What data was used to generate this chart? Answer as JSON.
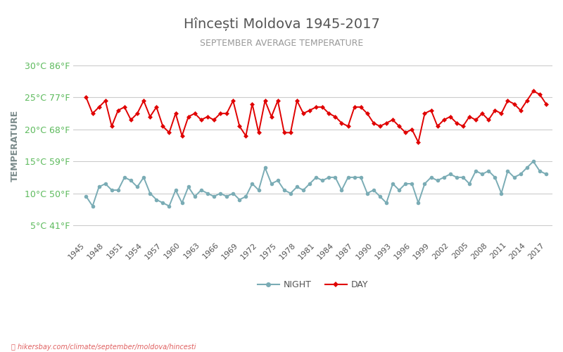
{
  "title": "Hîncești Moldova 1945-2017",
  "subtitle": "SEPTEMBER AVERAGE TEMPERATURE",
  "ylabel": "TEMPERATURE",
  "ylabel_color": "#7a8a8a",
  "title_color": "#555555",
  "subtitle_color": "#999999",
  "background_color": "#ffffff",
  "grid_color": "#cccccc",
  "years": [
    1945,
    1946,
    1947,
    1948,
    1949,
    1950,
    1951,
    1952,
    1953,
    1954,
    1955,
    1956,
    1957,
    1958,
    1959,
    1960,
    1961,
    1962,
    1963,
    1964,
    1965,
    1966,
    1967,
    1968,
    1969,
    1970,
    1971,
    1972,
    1973,
    1974,
    1975,
    1976,
    1977,
    1978,
    1979,
    1980,
    1981,
    1982,
    1983,
    1984,
    1985,
    1986,
    1987,
    1988,
    1989,
    1990,
    1991,
    1992,
    1993,
    1994,
    1995,
    1996,
    1997,
    1998,
    1999,
    2000,
    2001,
    2002,
    2003,
    2004,
    2005,
    2006,
    2007,
    2008,
    2009,
    2010,
    2011,
    2012,
    2013,
    2014,
    2015,
    2016,
    2017
  ],
  "day_temps": [
    25.0,
    22.5,
    23.5,
    24.5,
    20.5,
    23.0,
    23.5,
    21.5,
    22.5,
    24.5,
    22.0,
    23.5,
    20.5,
    19.5,
    22.5,
    19.0,
    22.0,
    22.5,
    21.5,
    22.0,
    21.5,
    22.5,
    22.5,
    24.5,
    20.5,
    19.0,
    24.0,
    19.5,
    24.5,
    22.0,
    24.5,
    19.5,
    19.5,
    24.5,
    22.5,
    23.0,
    23.5,
    23.5,
    22.5,
    22.0,
    21.0,
    20.5,
    23.5,
    23.5,
    22.5,
    21.0,
    20.5,
    21.0,
    21.5,
    20.5,
    19.5,
    20.0,
    18.0,
    22.5,
    23.0,
    20.5,
    21.5,
    22.0,
    21.0,
    20.5,
    22.0,
    21.5,
    22.5,
    21.5,
    23.0,
    22.5,
    24.5,
    24.0,
    23.0,
    24.5,
    26.0,
    25.5,
    24.0
  ],
  "night_temps": [
    9.5,
    8.0,
    11.0,
    11.5,
    10.5,
    10.5,
    12.5,
    12.0,
    11.0,
    12.5,
    10.0,
    9.0,
    8.5,
    8.0,
    10.5,
    8.5,
    11.0,
    9.5,
    10.5,
    10.0,
    9.5,
    10.0,
    9.5,
    10.0,
    9.0,
    9.5,
    11.5,
    10.5,
    14.0,
    11.5,
    12.0,
    10.5,
    10.0,
    11.0,
    10.5,
    11.5,
    12.5,
    12.0,
    12.5,
    12.5,
    10.5,
    12.5,
    12.5,
    12.5,
    10.0,
    10.5,
    9.5,
    8.5,
    11.5,
    10.5,
    11.5,
    11.5,
    8.5,
    11.5,
    12.5,
    12.0,
    12.5,
    13.0,
    12.5,
    12.5,
    11.5,
    13.5,
    13.0,
    13.5,
    12.5,
    10.0,
    13.5,
    12.5,
    13.0,
    14.0,
    15.0,
    13.5,
    13.0
  ],
  "day_color": "#e00000",
  "night_color": "#7aacb5",
  "marker_size": 3.5,
  "line_width": 1.4,
  "yticks_c": [
    5,
    10,
    15,
    20,
    25,
    30
  ],
  "yticks_f": [
    41,
    50,
    59,
    68,
    77,
    86
  ],
  "ylim": [
    3,
    32
  ],
  "xlim": [
    1943,
    2018
  ],
  "watermark": "hikersbay.com/climate/september/moldova/hincesti",
  "legend_night": "NIGHT",
  "legend_day": "DAY"
}
